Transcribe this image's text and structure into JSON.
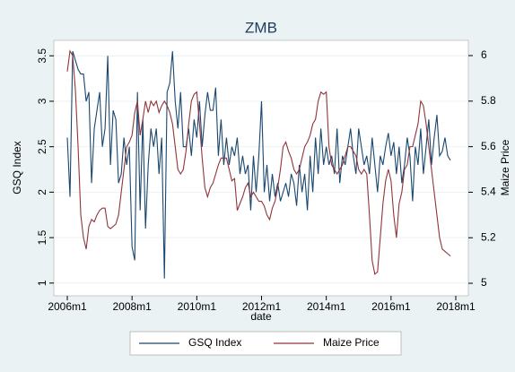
{
  "chart_data": {
    "type": "line",
    "title": "ZMB",
    "xlabel": "date",
    "ylabel": "GSQ Index",
    "y2label": "Maize Price",
    "x": [
      "2006m1",
      "2006m2",
      "2006m3",
      "2006m4",
      "2006m5",
      "2006m6",
      "2006m7",
      "2006m8",
      "2006m9",
      "2006m10",
      "2006m11",
      "2006m12",
      "2007m1",
      "2007m2",
      "2007m3",
      "2007m4",
      "2007m5",
      "2007m6",
      "2007m7",
      "2007m8",
      "2007m9",
      "2007m10",
      "2007m11",
      "2007m12",
      "2008m1",
      "2008m2",
      "2008m3",
      "2008m4",
      "2008m5",
      "2008m6",
      "2008m7",
      "2008m8",
      "2008m9",
      "2008m10",
      "2008m11",
      "2008m12",
      "2009m1",
      "2009m2",
      "2009m3",
      "2009m4",
      "2009m5",
      "2009m6",
      "2009m7",
      "2009m8",
      "2009m9",
      "2009m10",
      "2009m11",
      "2009m12",
      "2010m1",
      "2010m2",
      "2010m3",
      "2010m4",
      "2010m5",
      "2010m6",
      "2010m7",
      "2010m8",
      "2010m9",
      "2010m10",
      "2010m11",
      "2010m12",
      "2011m1",
      "2011m2",
      "2011m3",
      "2011m4",
      "2011m5",
      "2011m6",
      "2011m7",
      "2011m8",
      "2011m9",
      "2011m10",
      "2011m11",
      "2011m12",
      "2012m1",
      "2012m2",
      "2012m3",
      "2012m4",
      "2012m5",
      "2012m6",
      "2012m7",
      "2012m8",
      "2012m9",
      "2012m10",
      "2012m11",
      "2012m12",
      "2013m1",
      "2013m2",
      "2013m3",
      "2013m4",
      "2013m5",
      "2013m6",
      "2013m7",
      "2013m8",
      "2013m9",
      "2013m10",
      "2013m11",
      "2013m12",
      "2014m1",
      "2014m2",
      "2014m3",
      "2014m4",
      "2014m5",
      "2014m6",
      "2014m7",
      "2014m8",
      "2014m9",
      "2014m10",
      "2014m11",
      "2014m12",
      "2015m1",
      "2015m2",
      "2015m3",
      "2015m4",
      "2015m5",
      "2015m6",
      "2015m7",
      "2015m8",
      "2015m9",
      "2015m10",
      "2015m11",
      "2015m12",
      "2016m1",
      "2016m2",
      "2016m3",
      "2016m4",
      "2016m5",
      "2016m6",
      "2016m7",
      "2016m8",
      "2016m9",
      "2016m10",
      "2016m11",
      "2016m12",
      "2017m1",
      "2017m2",
      "2017m3",
      "2017m4",
      "2017m5",
      "2017m6",
      "2017m7",
      "2017m8",
      "2017m9",
      "2017m10",
      "2017m11",
      "2017m12",
      "2018m1"
    ],
    "xticks": [
      "2006m1",
      "2008m1",
      "2010m1",
      "2012m1",
      "2014m1",
      "2016m1",
      "2018m1"
    ],
    "ylim": [
      0.86,
      3.67
    ],
    "yticks": [
      1,
      1.5,
      2,
      2.5,
      3,
      3.5
    ],
    "y2lim": [
      4.945,
      6.067
    ],
    "y2ticks": [
      5,
      5.2,
      5.4,
      5.6,
      5.8,
      6
    ],
    "grid": true,
    "legend": "bottom",
    "series": [
      {
        "name": "GSQ Index",
        "color": "#1a476f",
        "values": [
          2.6,
          1.95,
          3.55,
          3.45,
          3.35,
          3.3,
          3.3,
          3.0,
          3.1,
          2.1,
          2.7,
          2.9,
          3.1,
          2.5,
          2.7,
          3.5,
          2.3,
          2.9,
          2.8,
          2.1,
          2.2,
          2.6,
          2.3,
          2.5,
          1.4,
          1.25,
          3.1,
          1.8,
          2.8,
          1.6,
          2.3,
          2.7,
          2.5,
          2.7,
          2.2,
          2.6,
          1.05,
          3.1,
          3.2,
          3.55,
          3.0,
          2.7,
          3.1,
          2.5,
          2.5,
          2.7,
          2.4,
          2.8,
          2.6,
          3.0,
          2.5,
          2.85,
          3.1,
          2.9,
          2.9,
          3.15,
          2.4,
          2.8,
          2.3,
          2.6,
          2.3,
          2.5,
          2.4,
          2.6,
          2.2,
          2.4,
          2.2,
          2.3,
          1.8,
          2.4,
          2.0,
          2.4,
          3.0,
          2.0,
          2.3,
          1.9,
          2.2,
          1.95,
          2.1,
          1.9,
          2.0,
          2.1,
          1.95,
          2.2,
          2.1,
          1.85,
          2.3,
          2.0,
          2.2,
          1.8,
          2.4,
          2.0,
          2.6,
          2.2,
          2.7,
          2.3,
          2.5,
          2.3,
          2.4,
          2.2,
          2.7,
          2.1,
          2.4,
          2.3,
          2.5,
          2.7,
          2.4,
          2.2,
          2.7,
          2.5,
          2.3,
          2.4,
          2.2,
          2.6,
          2.3,
          2.0,
          2.4,
          2.3,
          2.5,
          2.65,
          2.4,
          2.55,
          2.2,
          2.5,
          2.1,
          2.3,
          2.6,
          2.4,
          1.9,
          2.5,
          2.3,
          2.7,
          2.2,
          2.5,
          2.8,
          2.3,
          2.6,
          2.85,
          2.4,
          2.45,
          2.6,
          2.4,
          2.35,
          null,
          null
        ]
      },
      {
        "name": "Maize Price",
        "color": "#90353b",
        "axis": "y2",
        "values": [
          5.93,
          6.02,
          6.0,
          5.85,
          5.6,
          5.3,
          5.2,
          5.15,
          5.25,
          5.28,
          5.27,
          5.3,
          5.32,
          5.33,
          5.33,
          5.25,
          5.24,
          5.25,
          5.26,
          5.3,
          5.4,
          5.5,
          5.6,
          5.62,
          5.65,
          5.75,
          5.8,
          5.65,
          5.72,
          5.8,
          5.75,
          5.8,
          5.78,
          5.8,
          5.75,
          5.78,
          5.8,
          5.78,
          5.75,
          5.7,
          5.6,
          5.5,
          5.48,
          5.5,
          5.58,
          5.7,
          5.8,
          5.83,
          5.84,
          5.7,
          5.55,
          5.42,
          5.38,
          5.42,
          5.44,
          5.48,
          5.52,
          5.55,
          5.55,
          5.55,
          5.5,
          5.45,
          5.46,
          5.32,
          5.35,
          5.38,
          5.42,
          5.44,
          5.38,
          5.4,
          5.38,
          5.36,
          5.36,
          5.34,
          5.3,
          5.28,
          5.33,
          5.36,
          5.42,
          5.5,
          5.6,
          5.62,
          5.58,
          5.55,
          5.5,
          5.48,
          5.5,
          5.55,
          5.6,
          5.62,
          5.65,
          5.7,
          5.72,
          5.8,
          5.84,
          5.83,
          5.84,
          5.6,
          5.52,
          5.5,
          5.48,
          5.5,
          5.52,
          5.56,
          5.6,
          5.6,
          5.58,
          5.56,
          5.5,
          5.48,
          5.5,
          5.48,
          5.3,
          5.1,
          5.04,
          5.05,
          5.2,
          5.35,
          5.45,
          5.5,
          5.45,
          5.3,
          5.2,
          5.35,
          5.4,
          5.5,
          5.52,
          5.6,
          5.6,
          5.65,
          5.7,
          5.8,
          5.78,
          5.7,
          5.6,
          5.5,
          5.4,
          5.3,
          5.2,
          5.15,
          5.14,
          5.13,
          5.12,
          null,
          null
        ]
      }
    ]
  }
}
